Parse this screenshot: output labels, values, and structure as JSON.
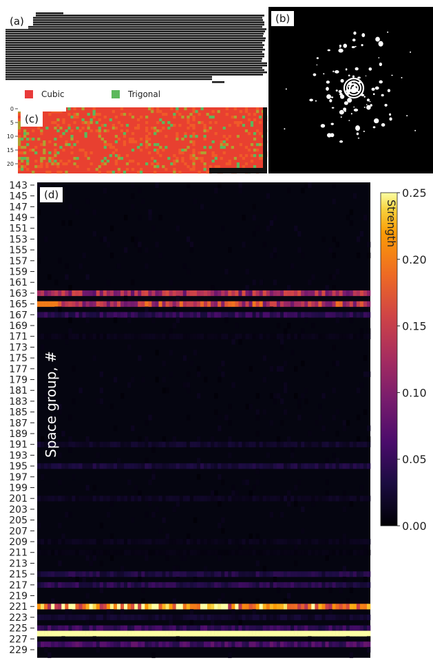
{
  "panel_labels": {
    "a": "(a)",
    "b": "(b)",
    "c": "(c)",
    "d": "(d)"
  },
  "legend": [
    {
      "label": "Cubic",
      "color": "#e83a3a"
    },
    {
      "label": "Trigonal",
      "color": "#5cb85c"
    }
  ],
  "chart_data": [
    {
      "panel": "a",
      "type": "image",
      "description_visible": "stack of horizontal dark strips"
    },
    {
      "panel": "b",
      "type": "image",
      "description_visible": "diffraction pattern, white spots on black"
    },
    {
      "panel": "c",
      "type": "heatmap",
      "y_ticks": [
        "0",
        "5",
        "10",
        "15",
        "20"
      ],
      "rows": 24,
      "categories": [
        "Cubic",
        "Trigonal"
      ],
      "colors": {
        "Cubic": "#e83a3a",
        "Trigonal": "#5cb85c"
      }
    },
    {
      "panel": "d",
      "type": "heatmap",
      "ylabel": "Space group, #",
      "y_ticks": [
        "143",
        "145",
        "147",
        "149",
        "151",
        "153",
        "155",
        "157",
        "159",
        "161",
        "163",
        "165",
        "167",
        "169",
        "171",
        "173",
        "175",
        "177",
        "179",
        "181",
        "183",
        "185",
        "187",
        "189",
        "191",
        "193",
        "195",
        "197",
        "199",
        "201",
        "203",
        "205",
        "207",
        "209",
        "211",
        "213",
        "215",
        "217",
        "219",
        "221",
        "223",
        "225",
        "227",
        "229"
      ],
      "row_strengths": {
        "163": 0.12,
        "165": 0.14,
        "167": 0.045,
        "171": 0.01,
        "191": 0.02,
        "195": 0.03,
        "201": 0.015,
        "209": 0.012,
        "211": 0.008,
        "215": 0.035,
        "217": 0.04,
        "221": 0.22,
        "223": 0.02,
        "225": 0.05,
        "226": 0.25,
        "228": 0.06
      },
      "colorbar": {
        "label": "Strength",
        "ticks": [
          "0.00",
          "0.05",
          "0.10",
          "0.15",
          "0.20",
          "0.25"
        ],
        "range": [
          0,
          0.25
        ]
      }
    }
  ]
}
